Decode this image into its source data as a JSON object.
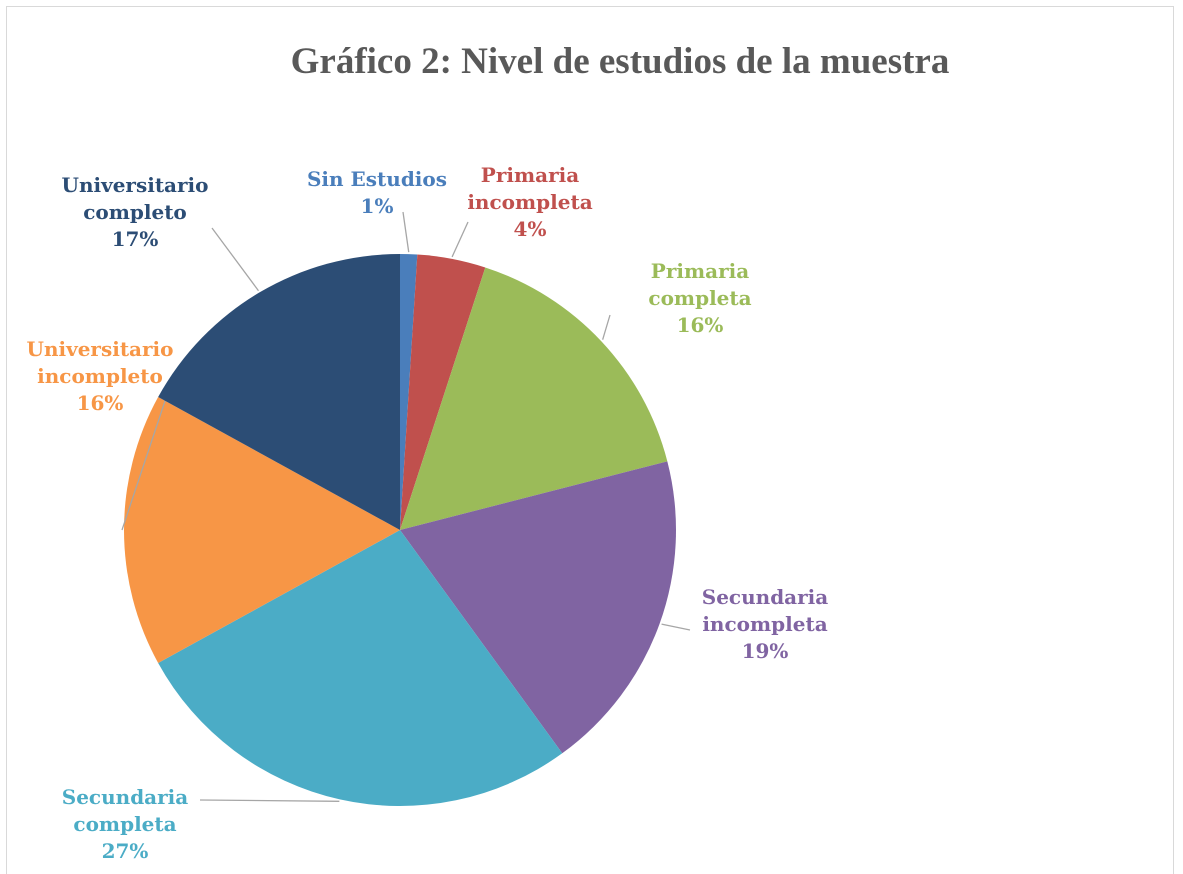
{
  "chart_data": {
    "type": "pie",
    "title": "Gráfico 2: Nivel de estudios de la muestra",
    "categories": [
      "Sin Estudios",
      "Primaria incompleta",
      "Primaria completa",
      "Secundaria incompleta",
      "Secundaria completa",
      "Universitario incompleto",
      "Universitario completo"
    ],
    "values": [
      1,
      4,
      16,
      19,
      27,
      16,
      17
    ],
    "value_labels": [
      "1%",
      "4%",
      "16%",
      "19%",
      "27%",
      "16%",
      "17%"
    ],
    "colors": [
      "#4a7ebb",
      "#c0504d",
      "#9bbb59",
      "#8064a2",
      "#4bacc6",
      "#f79646",
      "#2c4d75"
    ]
  }
}
